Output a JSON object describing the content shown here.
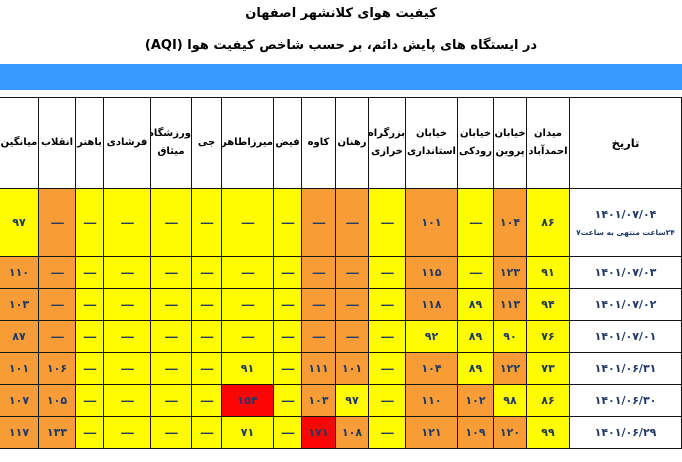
{
  "header": {
    "title": "کیفیت هوای کلانشهر اصفهان",
    "subtitle": "در ایستگاه های پایش دائم، بر حسب شاخص کیفیت هوا (AQI)"
  },
  "colors": {
    "blue_bar": "#3899FC",
    "yellow": "#FFFB00",
    "orange": "#F89C38",
    "red": "#FB0505",
    "value_text": "#1F3864"
  },
  "table": {
    "date_header": "تاریخ",
    "stations": [
      "میدان احمدآباد",
      "خیابان پروین",
      "خیابان رودکی",
      "خیابان استانداری",
      "بزرگراه خرازی",
      "رهنان",
      "کاوه",
      "فیض",
      "میرزاطاهر",
      "جی",
      "ورزشگاه میثاق",
      "فرشادی",
      "باهنر",
      "انقلاب",
      "میانگین"
    ],
    "rows": [
      {
        "date": "۱۴۰۱/۰۷/۰۴",
        "note": "۲۴ساعت منتهی به ساعت۷",
        "cells": [
          {
            "v": "۸۶",
            "c": "yellow"
          },
          {
            "v": "۱۰۴",
            "c": "orange"
          },
          {
            "v": "----",
            "c": "yellow"
          },
          {
            "v": "۱۰۱",
            "c": "orange"
          },
          {
            "v": "----",
            "c": "yellow"
          },
          {
            "v": "----",
            "c": "orange"
          },
          {
            "v": "----",
            "c": "orange"
          },
          {
            "v": "----",
            "c": "yellow"
          },
          {
            "v": "----",
            "c": "yellow"
          },
          {
            "v": "----",
            "c": "yellow"
          },
          {
            "v": "----",
            "c": "yellow"
          },
          {
            "v": "----",
            "c": "yellow"
          },
          {
            "v": "----",
            "c": "yellow"
          },
          {
            "v": "----",
            "c": "orange"
          },
          {
            "v": "۹۷",
            "c": "yellow"
          }
        ]
      },
      {
        "date": "۱۴۰۱/۰۷/۰۳",
        "note": "",
        "cells": [
          {
            "v": "۹۱",
            "c": "yellow"
          },
          {
            "v": "۱۲۳",
            "c": "orange"
          },
          {
            "v": "----",
            "c": "yellow"
          },
          {
            "v": "۱۱۵",
            "c": "orange"
          },
          {
            "v": "----",
            "c": "yellow"
          },
          {
            "v": "----",
            "c": "orange"
          },
          {
            "v": "----",
            "c": "orange"
          },
          {
            "v": "----",
            "c": "yellow"
          },
          {
            "v": "----",
            "c": "yellow"
          },
          {
            "v": "----",
            "c": "yellow"
          },
          {
            "v": "----",
            "c": "yellow"
          },
          {
            "v": "----",
            "c": "yellow"
          },
          {
            "v": "----",
            "c": "yellow"
          },
          {
            "v": "----",
            "c": "orange"
          },
          {
            "v": "۱۱۰",
            "c": "orange"
          }
        ]
      },
      {
        "date": "۱۴۰۱/۰۷/۰۲",
        "note": "",
        "cells": [
          {
            "v": "۹۴",
            "c": "yellow"
          },
          {
            "v": "۱۱۳",
            "c": "orange"
          },
          {
            "v": "۸۹",
            "c": "yellow"
          },
          {
            "v": "۱۱۸",
            "c": "orange"
          },
          {
            "v": "----",
            "c": "yellow"
          },
          {
            "v": "----",
            "c": "orange"
          },
          {
            "v": "----",
            "c": "orange"
          },
          {
            "v": "----",
            "c": "yellow"
          },
          {
            "v": "----",
            "c": "yellow"
          },
          {
            "v": "----",
            "c": "yellow"
          },
          {
            "v": "----",
            "c": "yellow"
          },
          {
            "v": "----",
            "c": "yellow"
          },
          {
            "v": "----",
            "c": "yellow"
          },
          {
            "v": "----",
            "c": "orange"
          },
          {
            "v": "۱۰۳",
            "c": "orange"
          }
        ]
      },
      {
        "date": "۱۴۰۱/۰۷/۰۱",
        "note": "",
        "cells": [
          {
            "v": "۷۶",
            "c": "yellow"
          },
          {
            "v": "۹۰",
            "c": "yellow"
          },
          {
            "v": "۸۹",
            "c": "yellow"
          },
          {
            "v": "۹۲",
            "c": "yellow"
          },
          {
            "v": "----",
            "c": "yellow"
          },
          {
            "v": "----",
            "c": "orange"
          },
          {
            "v": "----",
            "c": "orange"
          },
          {
            "v": "----",
            "c": "yellow"
          },
          {
            "v": "----",
            "c": "yellow"
          },
          {
            "v": "----",
            "c": "yellow"
          },
          {
            "v": "----",
            "c": "yellow"
          },
          {
            "v": "----",
            "c": "yellow"
          },
          {
            "v": "----",
            "c": "yellow"
          },
          {
            "v": "----",
            "c": "orange"
          },
          {
            "v": "۸۷",
            "c": "orange"
          }
        ]
      },
      {
        "date": "۱۴۰۱/۰۶/۳۱",
        "note": "",
        "cells": [
          {
            "v": "۷۳",
            "c": "yellow"
          },
          {
            "v": "۱۲۲",
            "c": "orange"
          },
          {
            "v": "۸۹",
            "c": "yellow"
          },
          {
            "v": "۱۰۴",
            "c": "orange"
          },
          {
            "v": "----",
            "c": "yellow"
          },
          {
            "v": "۱۰۱",
            "c": "orange"
          },
          {
            "v": "۱۱۱",
            "c": "orange"
          },
          {
            "v": "----",
            "c": "yellow"
          },
          {
            "v": "۹۱",
            "c": "yellow"
          },
          {
            "v": "----",
            "c": "yellow"
          },
          {
            "v": "----",
            "c": "yellow"
          },
          {
            "v": "----",
            "c": "yellow"
          },
          {
            "v": "----",
            "c": "yellow"
          },
          {
            "v": "۱۰۶",
            "c": "orange"
          },
          {
            "v": "۱۰۱",
            "c": "orange"
          }
        ]
      },
      {
        "date": "۱۴۰۱/۰۶/۳۰",
        "note": "",
        "cells": [
          {
            "v": "۸۶",
            "c": "yellow"
          },
          {
            "v": "۹۸",
            "c": "yellow"
          },
          {
            "v": "۱۰۲",
            "c": "orange"
          },
          {
            "v": "۱۱۰",
            "c": "orange"
          },
          {
            "v": "----",
            "c": "yellow"
          },
          {
            "v": "۹۷",
            "c": "yellow"
          },
          {
            "v": "۱۰۳",
            "c": "orange"
          },
          {
            "v": "----",
            "c": "yellow"
          },
          {
            "v": "۱۵۴",
            "c": "red"
          },
          {
            "v": "----",
            "c": "yellow"
          },
          {
            "v": "----",
            "c": "yellow"
          },
          {
            "v": "----",
            "c": "yellow"
          },
          {
            "v": "----",
            "c": "yellow"
          },
          {
            "v": "۱۰۵",
            "c": "orange"
          },
          {
            "v": "۱۰۷",
            "c": "orange"
          }
        ]
      },
      {
        "date": "۱۴۰۱/۰۶/۲۹",
        "note": "",
        "cells": [
          {
            "v": "۹۹",
            "c": "yellow"
          },
          {
            "v": "۱۲۰",
            "c": "orange"
          },
          {
            "v": "۱۰۹",
            "c": "orange"
          },
          {
            "v": "۱۲۱",
            "c": "orange"
          },
          {
            "v": "----",
            "c": "yellow"
          },
          {
            "v": "۱۰۸",
            "c": "orange"
          },
          {
            "v": "۱۷۱",
            "c": "red"
          },
          {
            "v": "----",
            "c": "yellow"
          },
          {
            "v": "۷۱",
            "c": "yellow"
          },
          {
            "v": "----",
            "c": "yellow"
          },
          {
            "v": "----",
            "c": "yellow"
          },
          {
            "v": "----",
            "c": "yellow"
          },
          {
            "v": "----",
            "c": "yellow"
          },
          {
            "v": "۱۳۳",
            "c": "orange"
          },
          {
            "v": "۱۱۷",
            "c": "orange"
          }
        ]
      }
    ]
  }
}
